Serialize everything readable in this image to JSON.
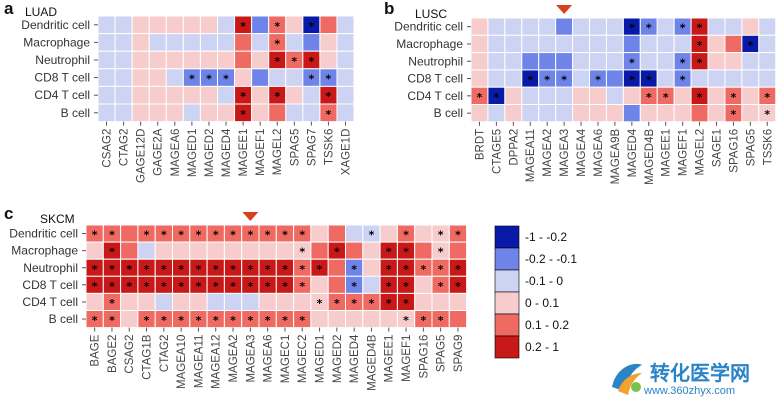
{
  "colors": {
    "c0": "#0a1aa8",
    "c1": "#6e84e8",
    "c2": "#cdd3f2",
    "c3": "#f6cccc",
    "c4": "#ee6a62",
    "c5": "#c81818",
    "grid": "#ffffff",
    "arrow": "#d9401c"
  },
  "legend": {
    "entries": [
      {
        "label": "-1 - -0.2",
        "bin": 0
      },
      {
        "label": "-0.2 - -0.1",
        "bin": 1
      },
      {
        "label": "-0.1 - 0",
        "bin": 2
      },
      {
        "label": "0 - 0.1",
        "bin": 3
      },
      {
        "label": "0.1 - 0.2",
        "bin": 4
      },
      {
        "label": "0.2 - 1",
        "bin": 5
      }
    ]
  },
  "watermark": {
    "chinese": "转化医学网",
    "url": "www.360zhyx.com"
  },
  "chart_data": [
    {
      "panel": "a",
      "title": "LUAD",
      "type": "heatmap",
      "rows": [
        "Dendritic cell",
        "Macrophage",
        "Neutrophil",
        "CD8 T cell",
        "CD4 T cell",
        "B cell"
      ],
      "columns": [
        "CSAG2",
        "CTAG2",
        "GAGE12D",
        "GAGE2A",
        "MAGEA6",
        "MAGED1",
        "MAGED2",
        "MAGED4",
        "MAGEE1",
        "MAGEF1",
        "MAGEL2",
        "SPAG5",
        "SPAG7",
        "TSSK6",
        "XAGE1D"
      ],
      "bins": [
        [
          2,
          2,
          3,
          3,
          3,
          3,
          3,
          2,
          5,
          1,
          4,
          3,
          0,
          4,
          2
        ],
        [
          2,
          2,
          3,
          2,
          2,
          2,
          2,
          2,
          4,
          2,
          4,
          2,
          1,
          3,
          2
        ],
        [
          2,
          2,
          3,
          3,
          3,
          3,
          3,
          3,
          4,
          3,
          5,
          4,
          5,
          3,
          2
        ],
        [
          2,
          2,
          3,
          3,
          2,
          1,
          1,
          1,
          3,
          1,
          2,
          2,
          1,
          1,
          2
        ],
        [
          2,
          2,
          3,
          3,
          3,
          3,
          3,
          2,
          5,
          3,
          5,
          3,
          2,
          5,
          2
        ],
        [
          2,
          2,
          3,
          3,
          3,
          2,
          3,
          3,
          5,
          3,
          4,
          2,
          2,
          4,
          2
        ]
      ],
      "significant": [
        [
          0,
          8
        ],
        [
          0,
          10
        ],
        [
          0,
          12
        ],
        [
          1,
          10
        ],
        [
          2,
          10
        ],
        [
          2,
          11
        ],
        [
          2,
          12
        ],
        [
          3,
          5
        ],
        [
          3,
          6
        ],
        [
          3,
          7
        ],
        [
          3,
          12
        ],
        [
          3,
          13
        ],
        [
          4,
          8
        ],
        [
          4,
          10
        ],
        [
          4,
          13
        ],
        [
          5,
          8
        ],
        [
          5,
          13
        ]
      ],
      "arrow_column": null
    },
    {
      "panel": "b",
      "title": "LUSC",
      "type": "heatmap",
      "rows": [
        "Dendritic cell",
        "Macrophage",
        "Neutrophil",
        "CD8 T cell",
        "CD4 T cell",
        "B cell"
      ],
      "columns": [
        "BRDT",
        "CTAGE5",
        "DPPA2",
        "MAGEA11",
        "MAGEA2",
        "MAGEA3",
        "MAGEA4",
        "MAGEA6",
        "MAGEA9B",
        "MAGED4",
        "MAGED4B",
        "MAGEE1",
        "MAGEF1",
        "MAGEL2",
        "SAGE1",
        "SPAG16",
        "SPAG5",
        "TSSK6"
      ],
      "bins": [
        [
          3,
          2,
          2,
          2,
          2,
          1,
          2,
          2,
          2,
          0,
          1,
          2,
          1,
          5,
          2,
          2,
          3,
          2
        ],
        [
          3,
          2,
          2,
          2,
          2,
          2,
          2,
          2,
          2,
          1,
          2,
          2,
          2,
          5,
          3,
          4,
          0,
          2
        ],
        [
          3,
          2,
          2,
          1,
          1,
          1,
          2,
          2,
          2,
          1,
          2,
          2,
          1,
          5,
          3,
          3,
          2,
          2
        ],
        [
          3,
          2,
          2,
          0,
          1,
          1,
          2,
          1,
          1,
          0,
          0,
          2,
          1,
          2,
          2,
          2,
          2,
          2
        ],
        [
          4,
          0,
          3,
          2,
          2,
          2,
          3,
          3,
          2,
          3,
          4,
          4,
          3,
          5,
          3,
          4,
          3,
          4
        ],
        [
          3,
          2,
          3,
          2,
          2,
          2,
          3,
          3,
          3,
          1,
          3,
          3,
          3,
          4,
          3,
          4,
          3,
          3
        ]
      ],
      "significant": [
        [
          0,
          9
        ],
        [
          0,
          10
        ],
        [
          0,
          12
        ],
        [
          0,
          13
        ],
        [
          1,
          13
        ],
        [
          1,
          16
        ],
        [
          2,
          9
        ],
        [
          2,
          12
        ],
        [
          2,
          13
        ],
        [
          3,
          3
        ],
        [
          3,
          4
        ],
        [
          3,
          5
        ],
        [
          3,
          7
        ],
        [
          3,
          9
        ],
        [
          3,
          10
        ],
        [
          3,
          12
        ],
        [
          4,
          0
        ],
        [
          4,
          1
        ],
        [
          4,
          10
        ],
        [
          4,
          11
        ],
        [
          4,
          13
        ],
        [
          4,
          15
        ],
        [
          4,
          17
        ],
        [
          5,
          15
        ],
        [
          5,
          17
        ]
      ],
      "arrow_column": 5
    },
    {
      "panel": "c",
      "title": "SKCM",
      "type": "heatmap",
      "rows": [
        "Dendritic cell",
        "Macrophage",
        "Neutrophil",
        "CD8 T cell",
        "CD4 T cell",
        "B cell"
      ],
      "columns": [
        "BAGE",
        "BAGE2",
        "CSAG2",
        "CTAG1B",
        "CTAG2",
        "MAGEA10",
        "MAGEA11",
        "MAGEA12",
        "MAGEA2",
        "MAGEA3",
        "MAGEA6",
        "MAGEC1",
        "MAGEC2",
        "MAGED1",
        "MAGED2",
        "MAGED4",
        "MAGED4B",
        "MAGEE1",
        "MAGEF1",
        "SPAG16",
        "SPAG5",
        "SPAG9"
      ],
      "bins": [
        [
          4,
          4,
          4,
          4,
          4,
          4,
          4,
          4,
          4,
          4,
          4,
          4,
          4,
          3,
          4,
          2,
          2,
          3,
          4,
          3,
          3,
          4
        ],
        [
          3,
          5,
          4,
          2,
          3,
          3,
          3,
          3,
          3,
          3,
          3,
          3,
          3,
          4,
          5,
          4,
          3,
          5,
          5,
          4,
          3,
          4
        ],
        [
          5,
          5,
          5,
          5,
          5,
          5,
          5,
          5,
          5,
          5,
          5,
          5,
          4,
          5,
          4,
          1,
          3,
          5,
          5,
          4,
          4,
          5
        ],
        [
          5,
          5,
          5,
          5,
          5,
          5,
          5,
          5,
          5,
          5,
          5,
          5,
          4,
          3,
          4,
          1,
          2,
          5,
          5,
          3,
          4,
          5
        ],
        [
          3,
          4,
          3,
          3,
          2,
          3,
          3,
          2,
          2,
          2,
          3,
          3,
          3,
          3,
          4,
          4,
          4,
          5,
          5,
          3,
          3,
          3
        ],
        [
          4,
          4,
          3,
          4,
          4,
          4,
          4,
          4,
          4,
          4,
          4,
          4,
          4,
          3,
          3,
          3,
          3,
          3,
          3,
          4,
          4,
          4
        ]
      ],
      "significant": [
        [
          0,
          0
        ],
        [
          0,
          1
        ],
        [
          0,
          3
        ],
        [
          0,
          4
        ],
        [
          0,
          5
        ],
        [
          0,
          6
        ],
        [
          0,
          7
        ],
        [
          0,
          8
        ],
        [
          0,
          9
        ],
        [
          0,
          10
        ],
        [
          0,
          11
        ],
        [
          0,
          12
        ],
        [
          0,
          16
        ],
        [
          0,
          18
        ],
        [
          0,
          20
        ],
        [
          0,
          21
        ],
        [
          1,
          1
        ],
        [
          1,
          12
        ],
        [
          1,
          14
        ],
        [
          1,
          17
        ],
        [
          1,
          18
        ],
        [
          1,
          20
        ],
        [
          2,
          0
        ],
        [
          2,
          1
        ],
        [
          2,
          2
        ],
        [
          2,
          3
        ],
        [
          2,
          4
        ],
        [
          2,
          5
        ],
        [
          2,
          6
        ],
        [
          2,
          7
        ],
        [
          2,
          8
        ],
        [
          2,
          9
        ],
        [
          2,
          10
        ],
        [
          2,
          11
        ],
        [
          2,
          12
        ],
        [
          2,
          13
        ],
        [
          2,
          15
        ],
        [
          2,
          17
        ],
        [
          2,
          18
        ],
        [
          2,
          19
        ],
        [
          2,
          20
        ],
        [
          2,
          21
        ],
        [
          3,
          0
        ],
        [
          3,
          1
        ],
        [
          3,
          2
        ],
        [
          3,
          3
        ],
        [
          3,
          4
        ],
        [
          3,
          5
        ],
        [
          3,
          6
        ],
        [
          3,
          7
        ],
        [
          3,
          8
        ],
        [
          3,
          9
        ],
        [
          3,
          10
        ],
        [
          3,
          11
        ],
        [
          3,
          12
        ],
        [
          3,
          15
        ],
        [
          3,
          17
        ],
        [
          3,
          18
        ],
        [
          3,
          20
        ],
        [
          3,
          21
        ],
        [
          4,
          1
        ],
        [
          4,
          13
        ],
        [
          4,
          14
        ],
        [
          4,
          15
        ],
        [
          4,
          16
        ],
        [
          4,
          17
        ],
        [
          4,
          18
        ],
        [
          5,
          0
        ],
        [
          5,
          1
        ],
        [
          5,
          3
        ],
        [
          5,
          4
        ],
        [
          5,
          5
        ],
        [
          5,
          6
        ],
        [
          5,
          7
        ],
        [
          5,
          8
        ],
        [
          5,
          9
        ],
        [
          5,
          10
        ],
        [
          5,
          11
        ],
        [
          5,
          12
        ],
        [
          5,
          18
        ],
        [
          5,
          19
        ],
        [
          5,
          20
        ]
      ],
      "arrow_column": 9
    }
  ]
}
